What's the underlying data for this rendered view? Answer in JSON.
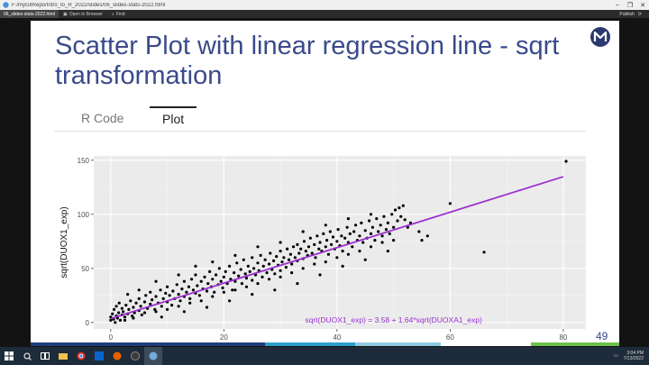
{
  "window": {
    "title": "F:/myGitRepo/Intro_to_R_2022/slides/06_slides-stats-2022.html"
  },
  "toolbar": {
    "tab_label": "06_slides-stats-2022.html",
    "open_in_browser": "Open in Browser",
    "find_label": "Find",
    "publish_label": "Publish"
  },
  "slide": {
    "title": "Scatter Plot with linear regression line - sqrt transformation",
    "tabs": [
      "R Code",
      "Plot"
    ],
    "active_tab": "Plot",
    "page_number": "49"
  },
  "chart_data": {
    "type": "scatter",
    "title": "",
    "xlabel": "",
    "ylabel": "sqrt(DUOX1_exp)",
    "xlim": [
      -3,
      84
    ],
    "ylim": [
      -6,
      154
    ],
    "x_ticks": [
      0,
      20,
      40,
      60,
      80
    ],
    "y_ticks": [
      0,
      50,
      100,
      150
    ],
    "grid": true,
    "background": "#ebebeb",
    "point_color": "#000000",
    "line_color": "#9b30d0",
    "regression": {
      "intercept": 3.58,
      "slope": 1.64,
      "x_range": [
        0,
        80
      ]
    },
    "annotation": "sqrt(DUOX1_exp) = 3.58 + 1.64*sqrt(DUOXA1_exp)",
    "annotation_color": "#9b30d0",
    "points": [
      [
        0,
        2
      ],
      [
        0,
        5
      ],
      [
        0.3,
        8
      ],
      [
        0.5,
        3
      ],
      [
        0.6,
        12
      ],
      [
        0.8,
        0
      ],
      [
        1,
        6
      ],
      [
        1,
        15
      ],
      [
        1.2,
        4
      ],
      [
        1.4,
        9
      ],
      [
        1.5,
        18
      ],
      [
        1.7,
        2
      ],
      [
        2,
        7
      ],
      [
        2,
        13
      ],
      [
        2.2,
        10
      ],
      [
        2.5,
        5
      ],
      [
        2.7,
        16
      ],
      [
        3,
        8
      ],
      [
        3.2,
        12
      ],
      [
        3.5,
        20
      ],
      [
        3.8,
        6
      ],
      [
        4,
        14
      ],
      [
        4.2,
        9
      ],
      [
        4.5,
        18
      ],
      [
        5,
        11
      ],
      [
        5,
        22
      ],
      [
        5.3,
        15
      ],
      [
        5.5,
        7
      ],
      [
        6,
        19
      ],
      [
        6.2,
        25
      ],
      [
        6.5,
        13
      ],
      [
        7,
        17
      ],
      [
        7,
        28
      ],
      [
        7.3,
        21
      ],
      [
        7.8,
        12
      ],
      [
        8,
        24
      ],
      [
        8.4,
        18
      ],
      [
        8.8,
        30
      ],
      [
        9,
        15
      ],
      [
        9.3,
        22
      ],
      [
        9.7,
        27
      ],
      [
        10,
        19
      ],
      [
        10,
        33
      ],
      [
        10.4,
        25
      ],
      [
        10.8,
        16
      ],
      [
        11,
        29
      ],
      [
        11.3,
        22
      ],
      [
        11.7,
        35
      ],
      [
        12,
        26
      ],
      [
        12.3,
        20
      ],
      [
        12.6,
        31
      ],
      [
        13,
        24
      ],
      [
        13,
        38
      ],
      [
        13.4,
        28
      ],
      [
        13.8,
        33
      ],
      [
        14,
        22
      ],
      [
        14.3,
        40
      ],
      [
        14.6,
        30
      ],
      [
        15,
        27
      ],
      [
        15,
        44
      ],
      [
        15.3,
        34
      ],
      [
        15.7,
        25
      ],
      [
        16,
        38
      ],
      [
        16.3,
        31
      ],
      [
        16.6,
        42
      ],
      [
        17,
        29
      ],
      [
        17.2,
        36
      ],
      [
        17.5,
        47
      ],
      [
        17.8,
        33
      ],
      [
        18,
        40
      ],
      [
        18.3,
        28
      ],
      [
        18.6,
        44
      ],
      [
        19,
        35
      ],
      [
        19.2,
        50
      ],
      [
        19.5,
        38
      ],
      [
        19.8,
        32
      ],
      [
        20,
        42
      ],
      [
        20.3,
        47
      ],
      [
        20.6,
        36
      ],
      [
        21,
        52
      ],
      [
        21.2,
        40
      ],
      [
        21.5,
        30
      ],
      [
        21.8,
        46
      ],
      [
        22,
        38
      ],
      [
        22.3,
        55
      ],
      [
        22.6,
        43
      ],
      [
        23,
        49
      ],
      [
        23.2,
        36
      ],
      [
        23.5,
        58
      ],
      [
        23.8,
        45
      ],
      [
        24,
        41
      ],
      [
        24.3,
        52
      ],
      [
        24.6,
        47
      ],
      [
        25,
        39
      ],
      [
        25,
        60
      ],
      [
        25.3,
        50
      ],
      [
        25.6,
        44
      ],
      [
        26,
        55
      ],
      [
        26.2,
        48
      ],
      [
        26.5,
        62
      ],
      [
        26.8,
        42
      ],
      [
        27,
        52
      ],
      [
        27.3,
        58
      ],
      [
        27.6,
        46
      ],
      [
        28,
        54
      ],
      [
        28.2,
        64
      ],
      [
        28.5,
        49
      ],
      [
        28.8,
        57
      ],
      [
        29,
        45
      ],
      [
        29.3,
        61
      ],
      [
        29.6,
        53
      ],
      [
        30,
        48
      ],
      [
        30,
        66
      ],
      [
        30.3,
        56
      ],
      [
        30.6,
        60
      ],
      [
        31,
        51
      ],
      [
        31.2,
        68
      ],
      [
        31.5,
        58
      ],
      [
        31.8,
        63
      ],
      [
        32,
        54
      ],
      [
        32.3,
        70
      ],
      [
        32.6,
        60
      ],
      [
        33,
        57
      ],
      [
        33,
        72
      ],
      [
        33.3,
        64
      ],
      [
        33.6,
        68
      ],
      [
        34,
        59
      ],
      [
        34.2,
        75
      ],
      [
        34.5,
        66
      ],
      [
        34.8,
        62
      ],
      [
        35,
        70
      ],
      [
        35.3,
        78
      ],
      [
        35.6,
        64
      ],
      [
        36,
        72
      ],
      [
        36.2,
        60
      ],
      [
        36.5,
        80
      ],
      [
        36.8,
        68
      ],
      [
        37,
        74
      ],
      [
        37.3,
        66
      ],
      [
        37.6,
        82
      ],
      [
        38,
        70
      ],
      [
        38.2,
        76
      ],
      [
        38.5,
        63
      ],
      [
        38.8,
        84
      ],
      [
        39,
        72
      ],
      [
        39.3,
        79
      ],
      [
        39.6,
        68
      ],
      [
        40,
        75
      ],
      [
        40.2,
        86
      ],
      [
        40.5,
        71
      ],
      [
        40.8,
        80
      ],
      [
        41,
        66
      ],
      [
        41.4,
        78
      ],
      [
        41.8,
        88
      ],
      [
        42,
        74
      ],
      [
        42.3,
        82
      ],
      [
        42.7,
        70
      ],
      [
        43,
        84
      ],
      [
        43.3,
        90
      ],
      [
        43.6,
        76
      ],
      [
        44,
        80
      ],
      [
        44.3,
        92
      ],
      [
        44.6,
        74
      ],
      [
        45,
        85
      ],
      [
        45.3,
        78
      ],
      [
        45.7,
        94
      ],
      [
        46,
        82
      ],
      [
        46.3,
        88
      ],
      [
        46.7,
        76
      ],
      [
        47,
        96
      ],
      [
        47.3,
        84
      ],
      [
        47.7,
        90
      ],
      [
        48,
        80
      ],
      [
        48.3,
        98
      ],
      [
        48.7,
        86
      ],
      [
        49,
        92
      ],
      [
        49.3,
        82
      ],
      [
        49.7,
        100
      ],
      [
        50,
        88
      ],
      [
        50.3,
        104
      ],
      [
        50.7,
        94
      ],
      [
        51,
        106
      ],
      [
        51.3,
        98
      ],
      [
        51.7,
        108
      ],
      [
        52,
        95
      ],
      [
        52.5,
        88
      ],
      [
        53,
        92
      ],
      [
        54.5,
        84
      ],
      [
        55,
        76
      ],
      [
        56,
        80
      ],
      [
        60,
        110
      ],
      [
        66,
        65
      ],
      [
        80.5,
        149
      ],
      [
        2.5,
        2
      ],
      [
        4,
        4
      ],
      [
        6,
        9
      ],
      [
        8,
        10
      ],
      [
        10,
        12
      ],
      [
        12,
        15
      ],
      [
        14,
        18
      ],
      [
        16,
        20
      ],
      [
        18,
        24
      ],
      [
        20,
        28
      ],
      [
        22,
        30
      ],
      [
        24,
        33
      ],
      [
        26,
        36
      ],
      [
        28,
        40
      ],
      [
        30,
        42
      ],
      [
        32,
        46
      ],
      [
        34,
        50
      ],
      [
        36,
        54
      ],
      [
        38,
        56
      ],
      [
        40,
        60
      ],
      [
        42,
        63
      ],
      [
        44,
        66
      ],
      [
        46,
        70
      ],
      [
        48,
        74
      ],
      [
        50,
        76
      ],
      [
        5,
        30
      ],
      [
        8,
        38
      ],
      [
        12,
        44
      ],
      [
        15,
        52
      ],
      [
        18,
        56
      ],
      [
        22,
        62
      ],
      [
        26,
        70
      ],
      [
        30,
        74
      ],
      [
        34,
        84
      ],
      [
        38,
        90
      ],
      [
        42,
        96
      ],
      [
        46,
        100
      ],
      [
        3,
        26
      ],
      [
        9,
        5
      ],
      [
        13,
        10
      ],
      [
        17,
        14
      ],
      [
        21,
        20
      ],
      [
        25,
        26
      ],
      [
        29,
        30
      ],
      [
        33,
        36
      ],
      [
        37,
        44
      ],
      [
        41,
        52
      ],
      [
        45,
        58
      ],
      [
        49,
        66
      ]
    ]
  },
  "taskbar": {
    "time": "3:04 PM",
    "date": "7/13/2022"
  }
}
